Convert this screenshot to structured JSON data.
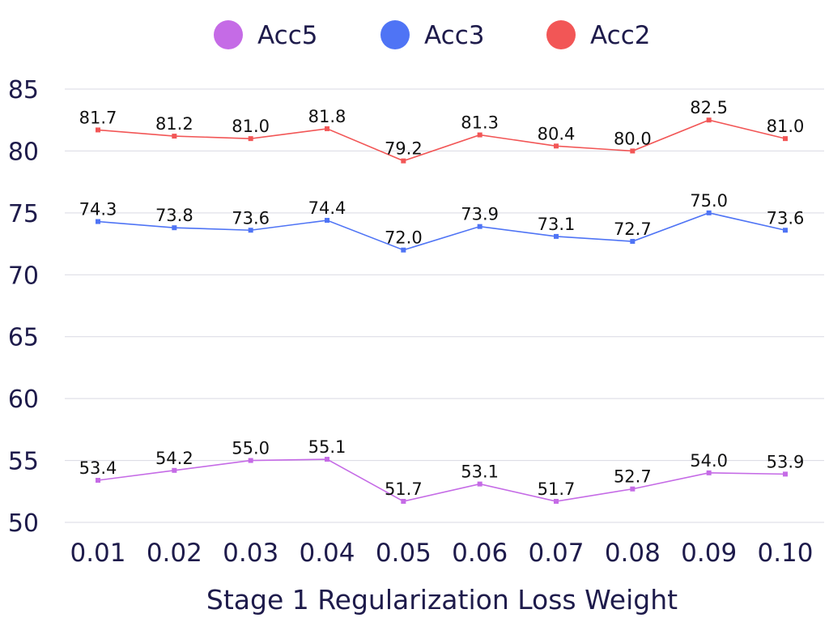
{
  "chart_data": {
    "type": "line",
    "title": "",
    "xlabel": "Stage 1 Regularization Loss Weight",
    "ylabel": "",
    "categories": [
      "0.01",
      "0.02",
      "0.03",
      "0.04",
      "0.05",
      "0.06",
      "0.07",
      "0.08",
      "0.09",
      "0.10"
    ],
    "ylim": [
      50,
      85
    ],
    "yticks": [
      "50",
      "55",
      "60",
      "65",
      "70",
      "75",
      "80",
      "85"
    ],
    "grid": true,
    "legend_position": "top",
    "series": [
      {
        "name": "Acc5",
        "color": "#c56be6",
        "values": [
          53.4,
          54.2,
          55.0,
          55.1,
          51.7,
          53.1,
          51.7,
          52.7,
          54.0,
          53.9
        ],
        "labels": [
          "53.4",
          "54.2",
          "55.0",
          "55.1",
          "51.7",
          "53.1",
          "51.7",
          "52.7",
          "54.0",
          "53.9"
        ]
      },
      {
        "name": "Acc3",
        "color": "#4f74f5",
        "values": [
          74.3,
          73.8,
          73.6,
          74.4,
          72.0,
          73.9,
          73.1,
          72.7,
          75.0,
          73.6
        ],
        "labels": [
          "74.3",
          "73.8",
          "73.6",
          "74.4",
          "72.0",
          "73.9",
          "73.1",
          "72.7",
          "75.0",
          "73.6"
        ]
      },
      {
        "name": "Acc2",
        "color": "#f25656",
        "values": [
          81.7,
          81.2,
          81.0,
          81.8,
          79.2,
          81.3,
          80.4,
          80.0,
          82.5,
          81.0
        ],
        "labels": [
          "81.7",
          "81.2",
          "81.0",
          "81.8",
          "79.2",
          "81.3",
          "80.4",
          "80.0",
          "82.5",
          "81.0"
        ]
      }
    ]
  }
}
